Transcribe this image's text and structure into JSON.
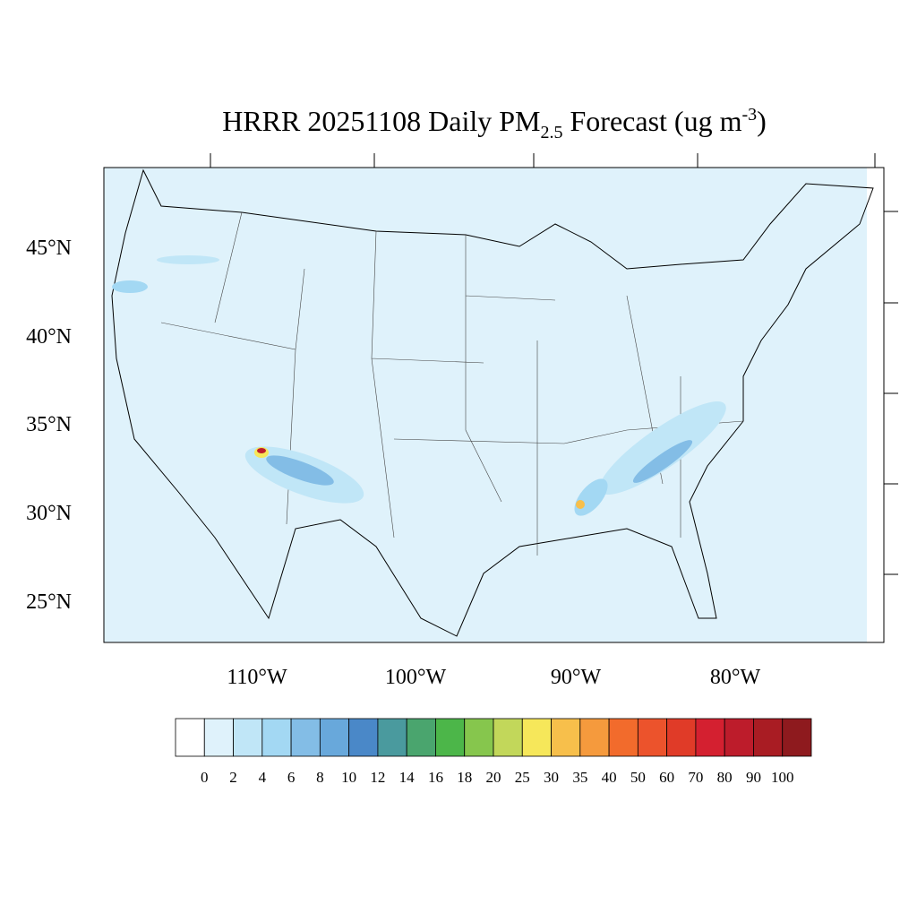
{
  "title": {
    "main": "HRRR 20251108 Daily PM",
    "subscript": "2.5",
    "middle": " Forecast (ug m",
    "superscript": "-3",
    "end": ")"
  },
  "map": {
    "lat_labels": [
      "45°N",
      "40°N",
      "35°N",
      "30°N",
      "25°N"
    ],
    "lon_labels": [
      "110°W",
      "100°W",
      "90°W",
      "80°W"
    ]
  },
  "colorbar": {
    "colors": [
      "#ffffff",
      "#dff2fb",
      "#c0e6f7",
      "#a3d8f3",
      "#83bde6",
      "#68a8db",
      "#4a88c8",
      "#4a9a9e",
      "#4aa56e",
      "#4cb649",
      "#86c64d",
      "#c2d75a",
      "#f6e75a",
      "#f7bf4b",
      "#f59a3d",
      "#f26b2c",
      "#ec532c",
      "#e03b28",
      "#d42030",
      "#bd1c2b",
      "#a91c23",
      "#8e1a1e"
    ],
    "levels": [
      0,
      2,
      4,
      6,
      8,
      10,
      12,
      14,
      16,
      18,
      20,
      25,
      30,
      35,
      40,
      50,
      60,
      70,
      80,
      90,
      100
    ]
  }
}
